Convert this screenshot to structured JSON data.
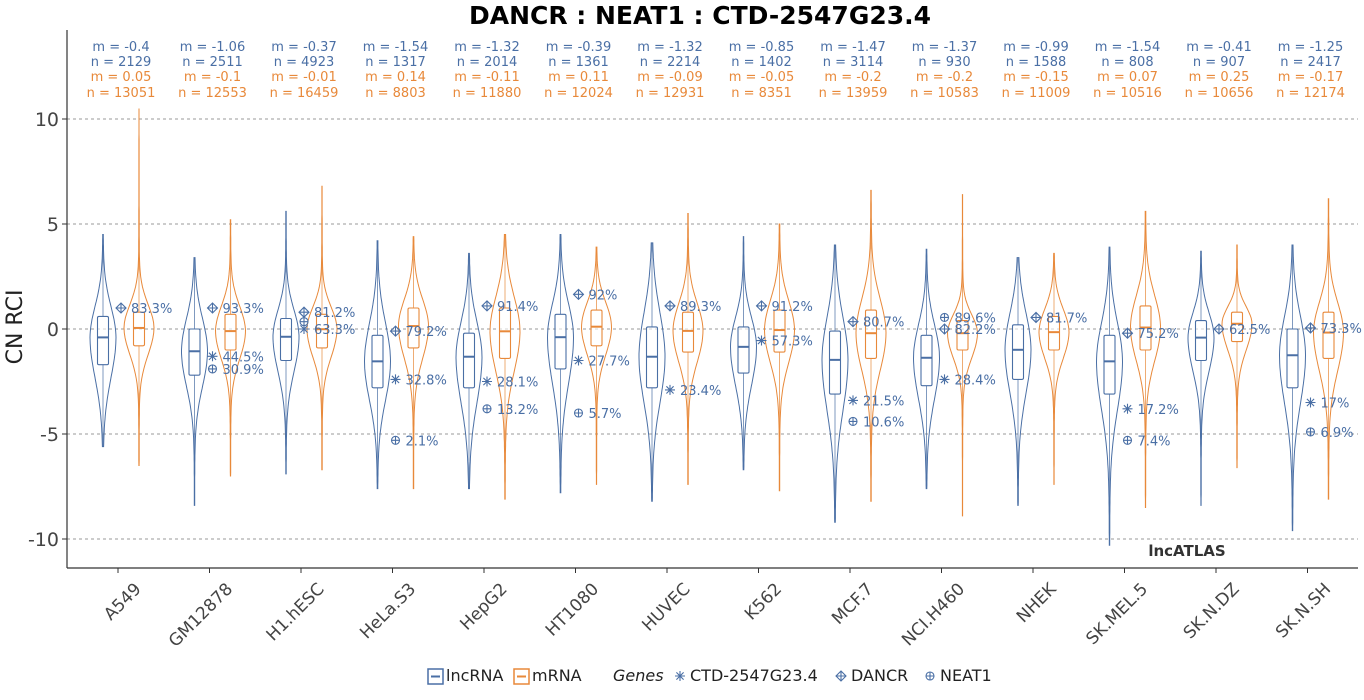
{
  "chart_data": {
    "type": "violin",
    "title": "DANCR : NEAT1 : CTD-2547G23.4",
    "ylabel": "CN RCI",
    "ylim": [
      -11,
      14
    ],
    "yticks": [
      -10,
      -5,
      0,
      5,
      10
    ],
    "grid": "horizontal dashed",
    "watermark": "lncATLAS",
    "colors": {
      "lncRNA": "#4a6fa5",
      "mRNA": "#e8893a",
      "gene_marker": "#4a6fa5"
    },
    "legend": {
      "placement": "bottom",
      "series": [
        {
          "name": "lncRNA",
          "color": "#4a6fa5"
        },
        {
          "name": "mRNA",
          "color": "#e8893a"
        }
      ],
      "genes_title": "Genes",
      "genes": [
        {
          "name": "CTD-2547G23.4",
          "symbol": "asterisk"
        },
        {
          "name": "DANCR",
          "symbol": "diamond-plus"
        },
        {
          "name": "NEAT1",
          "symbol": "circle-plus"
        }
      ]
    },
    "categories": [
      {
        "name": "A549",
        "lncRNA": {
          "median": -0.4,
          "q1": -1.7,
          "q3": 0.6,
          "min": -5.6,
          "max": 4.5,
          "stat_m": "m = -0.4",
          "stat_n": "n = 2129"
        },
        "mRNA": {
          "median": 0.05,
          "q1": -0.8,
          "q3": 0.8,
          "min": -6.5,
          "max": 10.5,
          "stat_m": "m = 0.05",
          "stat_n": "n = 13051"
        },
        "genes": [
          {
            "gene": "DANCR",
            "value": 1.0,
            "label": "83.3%"
          }
        ]
      },
      {
        "name": "GM12878",
        "lncRNA": {
          "median": -1.06,
          "q1": -2.2,
          "q3": 0.0,
          "min": -8.4,
          "max": 3.4,
          "stat_m": "m = -1.06",
          "stat_n": "n = 2511"
        },
        "mRNA": {
          "median": -0.1,
          "q1": -1.0,
          "q3": 0.7,
          "min": -7.0,
          "max": 5.2,
          "stat_m": "m = -0.1",
          "stat_n": "n = 12553"
        },
        "genes": [
          {
            "gene": "DANCR",
            "value": 1.0,
            "label": "93.3%"
          },
          {
            "gene": "CTD-2547G23.4",
            "value": -1.3,
            "label": "44.5%"
          },
          {
            "gene": "NEAT1",
            "value": -1.9,
            "label": "30.9%"
          }
        ]
      },
      {
        "name": "H1.hESC",
        "lncRNA": {
          "median": -0.37,
          "q1": -1.5,
          "q3": 0.5,
          "min": -6.9,
          "max": 5.6,
          "stat_m": "m = -0.37",
          "stat_n": "n = 4923"
        },
        "mRNA": {
          "median": -0.01,
          "q1": -0.9,
          "q3": 0.7,
          "min": -6.7,
          "max": 6.8,
          "stat_m": "m = -0.01",
          "stat_n": "n = 16459"
        },
        "genes": [
          {
            "gene": "DANCR",
            "value": 0.8,
            "label": "81.2%"
          },
          {
            "gene": "NEAT1",
            "value": 0.35,
            "label": ""
          },
          {
            "gene": "CTD-2547G23.4",
            "value": 0.0,
            "label": "63.3%"
          }
        ]
      },
      {
        "name": "HeLa.S3",
        "lncRNA": {
          "median": -1.54,
          "q1": -2.8,
          "q3": -0.3,
          "min": -7.6,
          "max": 4.2,
          "stat_m": "m = -1.54",
          "stat_n": "n = 1317"
        },
        "mRNA": {
          "median": 0.14,
          "q1": -0.9,
          "q3": 1.0,
          "min": -7.6,
          "max": 4.4,
          "stat_m": "m = 0.14",
          "stat_n": "n = 8803"
        },
        "genes": [
          {
            "gene": "DANCR",
            "value": -0.1,
            "label": "79.2%"
          },
          {
            "gene": "CTD-2547G23.4",
            "value": -2.4,
            "label": "32.8%"
          },
          {
            "gene": "NEAT1",
            "value": -5.3,
            "label": "2.1%"
          }
        ]
      },
      {
        "name": "HepG2",
        "lncRNA": {
          "median": -1.32,
          "q1": -2.8,
          "q3": -0.2,
          "min": -7.6,
          "max": 3.6,
          "stat_m": "m = -1.32",
          "stat_n": "n = 2014"
        },
        "mRNA": {
          "median": -0.11,
          "q1": -1.4,
          "q3": 1.0,
          "min": -8.1,
          "max": 4.5,
          "stat_m": "m = -0.11",
          "stat_n": "n = 11880"
        },
        "genes": [
          {
            "gene": "DANCR",
            "value": 1.1,
            "label": "91.4%"
          },
          {
            "gene": "CTD-2547G23.4",
            "value": -2.5,
            "label": "28.1%"
          },
          {
            "gene": "NEAT1",
            "value": -3.8,
            "label": "13.2%"
          }
        ]
      },
      {
        "name": "HT1080",
        "lncRNA": {
          "median": -0.39,
          "q1": -1.9,
          "q3": 0.7,
          "min": -7.8,
          "max": 4.5,
          "stat_m": "m = -0.39",
          "stat_n": "n = 1361"
        },
        "mRNA": {
          "median": 0.11,
          "q1": -0.8,
          "q3": 0.9,
          "min": -7.4,
          "max": 3.9,
          "stat_m": "m = 0.11",
          "stat_n": "n = 12024"
        },
        "genes": [
          {
            "gene": "DANCR",
            "value": 1.65,
            "label": "92%"
          },
          {
            "gene": "CTD-2547G23.4",
            "value": -1.5,
            "label": "27.7%"
          },
          {
            "gene": "NEAT1",
            "value": -4.0,
            "label": "5.7%"
          }
        ]
      },
      {
        "name": "HUVEC",
        "lncRNA": {
          "median": -1.32,
          "q1": -2.8,
          "q3": 0.1,
          "min": -8.2,
          "max": 4.1,
          "stat_m": "m = -1.32",
          "stat_n": "n = 2214"
        },
        "mRNA": {
          "median": -0.09,
          "q1": -1.1,
          "q3": 0.8,
          "min": -7.4,
          "max": 5.5,
          "stat_m": "m = -0.09",
          "stat_n": "n = 12931"
        },
        "genes": [
          {
            "gene": "DANCR",
            "value": 1.1,
            "label": "89.3%"
          },
          {
            "gene": "CTD-2547G23.4",
            "value": -2.9,
            "label": "23.4%"
          }
        ]
      },
      {
        "name": "K562",
        "lncRNA": {
          "median": -0.85,
          "q1": -2.1,
          "q3": 0.1,
          "min": -6.7,
          "max": 4.4,
          "stat_m": "m = -0.85",
          "stat_n": "n = 1402"
        },
        "mRNA": {
          "median": -0.05,
          "q1": -1.1,
          "q3": 0.9,
          "min": -7.7,
          "max": 5.0,
          "stat_m": "m = -0.05",
          "stat_n": "n = 8351"
        },
        "genes": [
          {
            "gene": "DANCR",
            "value": 1.1,
            "label": "91.2%"
          },
          {
            "gene": "CTD-2547G23.4",
            "value": -0.55,
            "label": "57.3%"
          }
        ]
      },
      {
        "name": "MCF.7",
        "lncRNA": {
          "median": -1.47,
          "q1": -3.1,
          "q3": -0.1,
          "min": -9.2,
          "max": 4.0,
          "stat_m": "m = -1.47",
          "stat_n": "n = 3114"
        },
        "mRNA": {
          "median": -0.2,
          "q1": -1.4,
          "q3": 0.9,
          "min": -8.2,
          "max": 6.6,
          "stat_m": "m = -0.2",
          "stat_n": "n = 13959"
        },
        "genes": [
          {
            "gene": "DANCR",
            "value": 0.35,
            "label": "80.7%"
          },
          {
            "gene": "CTD-2547G23.4",
            "value": -3.4,
            "label": "21.5%"
          },
          {
            "gene": "NEAT1",
            "value": -4.4,
            "label": "10.6%"
          }
        ]
      },
      {
        "name": "NCI.H460",
        "lncRNA": {
          "median": -1.37,
          "q1": -2.7,
          "q3": -0.3,
          "min": -7.6,
          "max": 3.8,
          "stat_m": "m = -1.37",
          "stat_n": "n = 930"
        },
        "mRNA": {
          "median": -0.2,
          "q1": -1.0,
          "q3": 0.4,
          "min": -8.9,
          "max": 6.4,
          "stat_m": "m = -0.2",
          "stat_n": "n = 10583"
        },
        "genes": [
          {
            "gene": "NEAT1",
            "value": 0.55,
            "label": "89.6%"
          },
          {
            "gene": "DANCR",
            "value": 0.0,
            "label": "82.2%"
          },
          {
            "gene": "CTD-2547G23.4",
            "value": -2.4,
            "label": "28.4%"
          }
        ]
      },
      {
        "name": "NHEK",
        "lncRNA": {
          "median": -0.99,
          "q1": -2.4,
          "q3": 0.2,
          "min": -8.4,
          "max": 3.4,
          "stat_m": "m = -0.99",
          "stat_n": "n = 1588"
        },
        "mRNA": {
          "median": -0.15,
          "q1": -1.0,
          "q3": 0.6,
          "min": -7.4,
          "max": 3.6,
          "stat_m": "m = -0.15",
          "stat_n": "n = 11009"
        },
        "genes": [
          {
            "gene": "DANCR",
            "value": 0.55,
            "label": "81.7%"
          }
        ]
      },
      {
        "name": "SK.MEL.5",
        "lncRNA": {
          "median": -1.54,
          "q1": -3.1,
          "q3": -0.3,
          "min": -10.3,
          "max": 3.9,
          "stat_m": "m = -1.54",
          "stat_n": "n = 808"
        },
        "mRNA": {
          "median": 0.07,
          "q1": -1.0,
          "q3": 1.1,
          "min": -8.5,
          "max": 5.6,
          "stat_m": "m = 0.07",
          "stat_n": "n = 10516"
        },
        "genes": [
          {
            "gene": "DANCR",
            "value": -0.2,
            "label": "75.2%"
          },
          {
            "gene": "CTD-2547G23.4",
            "value": -3.8,
            "label": "17.2%"
          },
          {
            "gene": "NEAT1",
            "value": -5.3,
            "label": "7.4%"
          }
        ]
      },
      {
        "name": "SK.N.DZ",
        "lncRNA": {
          "median": -0.41,
          "q1": -1.5,
          "q3": 0.4,
          "min": -8.4,
          "max": 3.7,
          "stat_m": "m = -0.41",
          "stat_n": "n = 907"
        },
        "mRNA": {
          "median": 0.25,
          "q1": -0.6,
          "q3": 0.8,
          "min": -6.6,
          "max": 4.0,
          "stat_m": "m = 0.25",
          "stat_n": "n = 10656"
        },
        "genes": [
          {
            "gene": "DANCR",
            "value": 0.0,
            "label": "62.5%"
          }
        ]
      },
      {
        "name": "SK.N.SH",
        "lncRNA": {
          "median": -1.25,
          "q1": -2.8,
          "q3": 0.0,
          "min": -9.6,
          "max": 4.0,
          "stat_m": "m = -1.25",
          "stat_n": "n = 2417"
        },
        "mRNA": {
          "median": -0.17,
          "q1": -1.4,
          "q3": 0.8,
          "min": -8.1,
          "max": 6.2,
          "stat_m": "m = -0.17",
          "stat_n": "n = 12174"
        },
        "genes": [
          {
            "gene": "DANCR",
            "value": 0.05,
            "label": "73.3%"
          },
          {
            "gene": "CTD-2547G23.4",
            "value": -3.5,
            "label": "17%"
          },
          {
            "gene": "NEAT1",
            "value": -4.9,
            "label": "6.9%"
          }
        ]
      }
    ]
  }
}
